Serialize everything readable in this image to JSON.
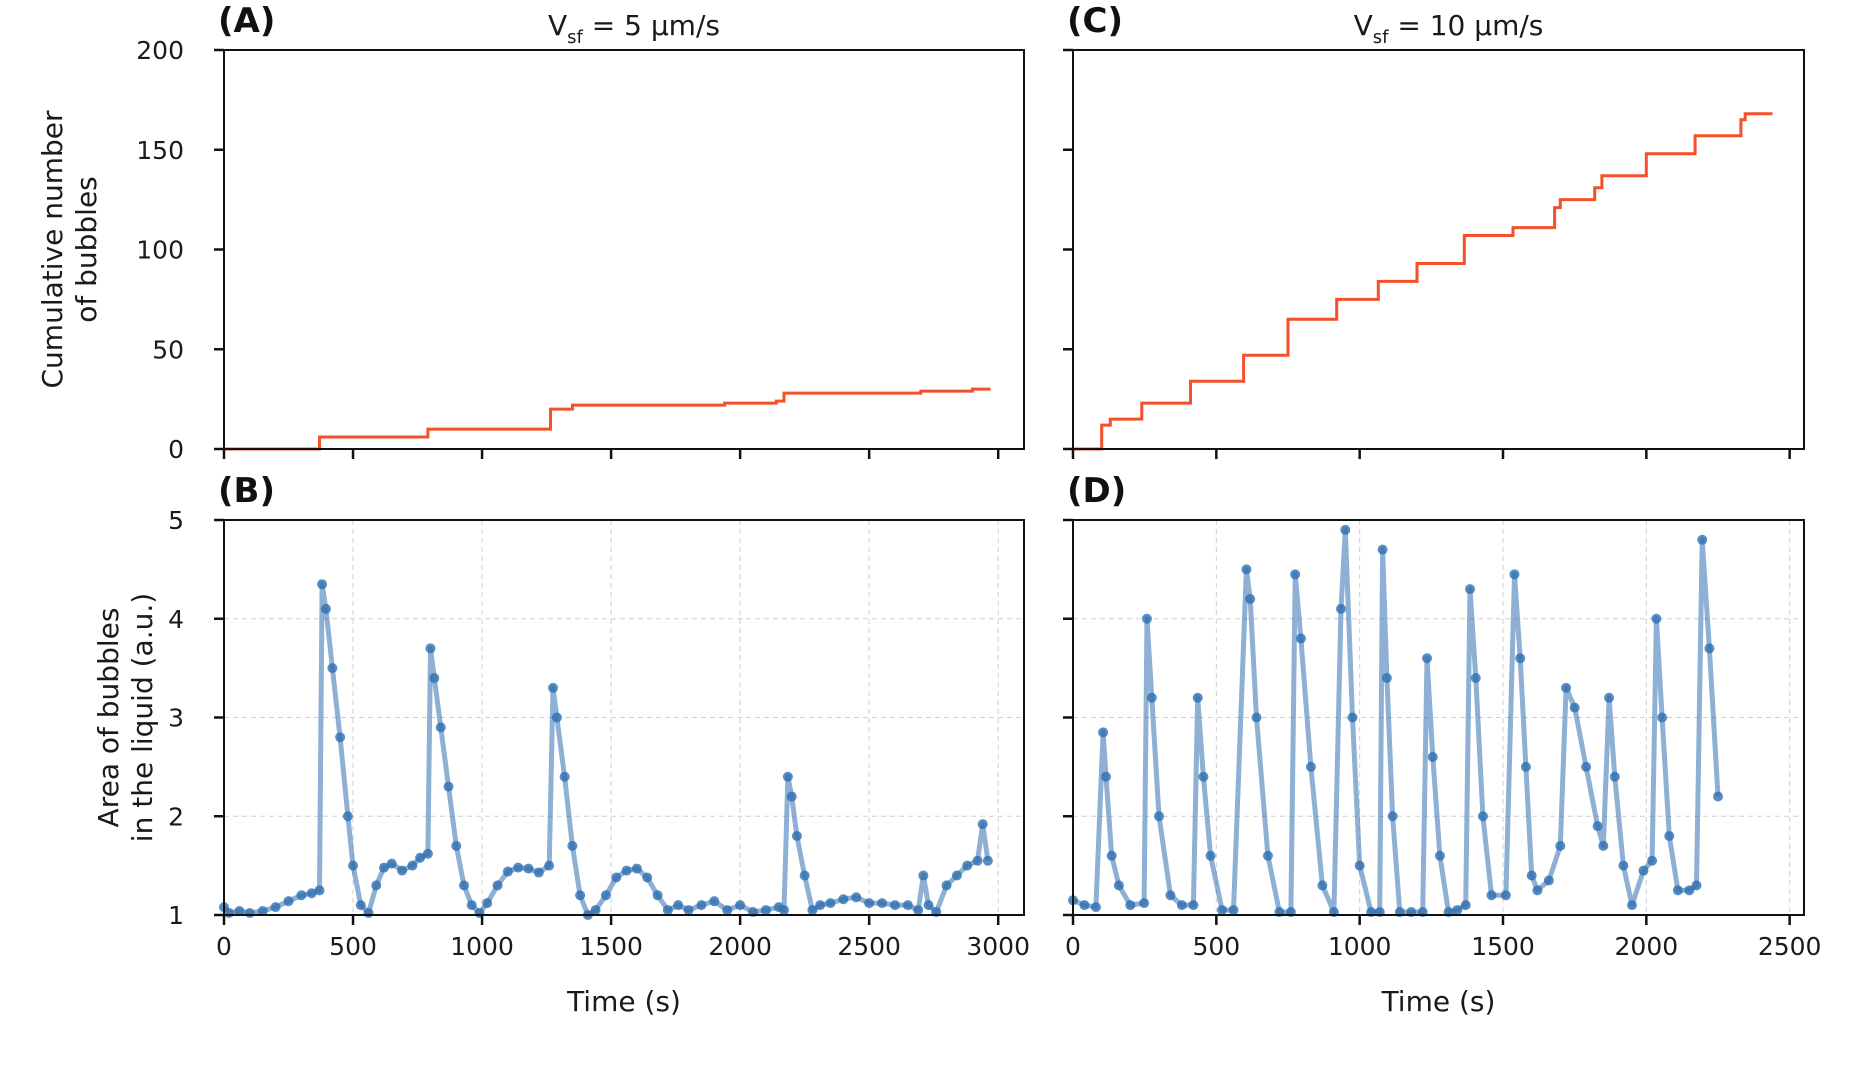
{
  "chart_data": [
    {
      "panel": "(A)",
      "type": "line",
      "title": "V_sf = 5 µm/s",
      "title_main": "V",
      "title_sub": "sf",
      "title_rest": " = 5 µm/s",
      "ylabel_lines": [
        "Cumulative number",
        "of bubbles"
      ],
      "xlabel": "",
      "xlim": [
        0,
        3100
      ],
      "ylim": [
        0,
        200
      ],
      "xticks": [
        0,
        500,
        1000,
        1500,
        2000,
        2500,
        3000
      ],
      "yticks": [
        0,
        50,
        100,
        150,
        200
      ],
      "show_xticklabels": false,
      "show_yticklabels": true,
      "grid": false,
      "color": "#f4502a",
      "step": true,
      "x": [
        0,
        370,
        790,
        1265,
        1350,
        1940,
        2140,
        2170,
        2700,
        2900,
        2970
      ],
      "y": [
        0,
        6,
        10,
        20,
        22,
        23,
        24,
        28,
        29,
        30,
        30
      ]
    },
    {
      "panel": "(C)",
      "type": "line",
      "title": "V_sf = 10 µm/s",
      "title_main": "V",
      "title_sub": "sf",
      "title_rest": " = 10 µm/s",
      "ylabel_lines": [],
      "xlabel": "",
      "xlim": [
        0,
        2550
      ],
      "ylim": [
        0,
        200
      ],
      "xticks": [
        0,
        500,
        1000,
        1500,
        2000,
        2500
      ],
      "yticks": [
        0,
        50,
        100,
        150,
        200
      ],
      "show_xticklabels": false,
      "show_yticklabels": false,
      "grid": false,
      "color": "#f4502a",
      "step": true,
      "x": [
        0,
        100,
        130,
        240,
        410,
        595,
        750,
        920,
        1065,
        1200,
        1365,
        1535,
        1680,
        1700,
        1820,
        1845,
        2000,
        2170,
        2330,
        2345,
        2440
      ],
      "y": [
        0,
        12,
        15,
        23,
        34,
        47,
        65,
        75,
        84,
        93,
        107,
        111,
        121,
        125,
        131,
        137,
        148,
        157,
        165,
        168,
        168
      ]
    },
    {
      "panel": "(B)",
      "type": "scatter",
      "title": "",
      "ylabel_lines": [
        "Area of bubbles",
        "in the liquid (a.u.)"
      ],
      "xlabel": "Time (s)",
      "xlim": [
        0,
        3100
      ],
      "ylim": [
        1,
        5
      ],
      "xticks": [
        0,
        500,
        1000,
        1500,
        2000,
        2500,
        3000
      ],
      "yticks": [
        1,
        2,
        3,
        4,
        5
      ],
      "show_xticklabels": true,
      "show_yticklabels": true,
      "grid": true,
      "color": "#2f6fb0",
      "x": [
        0,
        20,
        60,
        100,
        150,
        200,
        250,
        300,
        340,
        370,
        380,
        395,
        420,
        450,
        480,
        500,
        530,
        560,
        590,
        620,
        650,
        690,
        730,
        760,
        790,
        800,
        815,
        840,
        870,
        900,
        930,
        960,
        990,
        1020,
        1060,
        1100,
        1140,
        1180,
        1220,
        1260,
        1275,
        1290,
        1320,
        1350,
        1380,
        1410,
        1440,
        1480,
        1520,
        1560,
        1600,
        1640,
        1680,
        1720,
        1760,
        1800,
        1850,
        1900,
        1950,
        2000,
        2050,
        2100,
        2150,
        2170,
        2185,
        2200,
        2220,
        2250,
        2280,
        2310,
        2350,
        2400,
        2450,
        2500,
        2550,
        2600,
        2650,
        2690,
        2710,
        2730,
        2760,
        2800,
        2840,
        2880,
        2920,
        2940,
        2960
      ],
      "y": [
        1.08,
        1.02,
        1.04,
        1.02,
        1.04,
        1.08,
        1.14,
        1.2,
        1.22,
        1.25,
        4.35,
        4.1,
        3.5,
        2.8,
        2.0,
        1.5,
        1.1,
        1.02,
        1.3,
        1.48,
        1.52,
        1.45,
        1.5,
        1.58,
        1.62,
        3.7,
        3.4,
        2.9,
        2.3,
        1.7,
        1.3,
        1.1,
        1.02,
        1.12,
        1.3,
        1.44,
        1.48,
        1.47,
        1.43,
        1.5,
        3.3,
        3.0,
        2.4,
        1.7,
        1.2,
        1.0,
        1.05,
        1.2,
        1.38,
        1.45,
        1.47,
        1.38,
        1.2,
        1.05,
        1.1,
        1.05,
        1.1,
        1.14,
        1.05,
        1.1,
        1.03,
        1.05,
        1.08,
        1.05,
        2.4,
        2.2,
        1.8,
        1.4,
        1.05,
        1.1,
        1.12,
        1.16,
        1.18,
        1.12,
        1.12,
        1.1,
        1.1,
        1.05,
        1.4,
        1.1,
        1.03,
        1.3,
        1.4,
        1.5,
        1.55,
        1.92,
        1.55
      ]
    },
    {
      "panel": "(D)",
      "type": "scatter",
      "title": "",
      "ylabel_lines": [],
      "xlabel": "Time (s)",
      "xlim": [
        0,
        2550
      ],
      "ylim": [
        1,
        5
      ],
      "xticks": [
        0,
        500,
        1000,
        1500,
        2000,
        2500
      ],
      "yticks": [
        1,
        2,
        3,
        4,
        5
      ],
      "show_xticklabels": true,
      "show_yticklabels": false,
      "grid": true,
      "color": "#2f6fb0",
      "x": [
        0,
        40,
        80,
        105,
        115,
        135,
        160,
        200,
        248,
        258,
        275,
        300,
        340,
        380,
        420,
        435,
        455,
        480,
        520,
        560,
        605,
        618,
        640,
        680,
        720,
        760,
        775,
        795,
        830,
        870,
        910,
        935,
        950,
        975,
        1000,
        1040,
        1070,
        1080,
        1095,
        1115,
        1140,
        1180,
        1220,
        1235,
        1255,
        1280,
        1310,
        1340,
        1370,
        1385,
        1405,
        1430,
        1460,
        1510,
        1540,
        1560,
        1580,
        1600,
        1620,
        1660,
        1700,
        1720,
        1750,
        1790,
        1830,
        1850,
        1870,
        1890,
        1920,
        1950,
        1990,
        2020,
        2035,
        2055,
        2080,
        2110,
        2150,
        2175,
        2195,
        2220,
        2250
      ],
      "y": [
        1.15,
        1.1,
        1.08,
        2.85,
        2.4,
        1.6,
        1.3,
        1.1,
        1.12,
        4.0,
        3.2,
        2.0,
        1.2,
        1.1,
        1.1,
        3.2,
        2.4,
        1.6,
        1.05,
        1.05,
        4.5,
        4.2,
        3.0,
        1.6,
        1.03,
        1.03,
        4.45,
        3.8,
        2.5,
        1.3,
        1.03,
        4.1,
        4.9,
        3.0,
        1.5,
        1.03,
        1.03,
        4.7,
        3.4,
        2.0,
        1.03,
        1.03,
        1.03,
        3.6,
        2.6,
        1.6,
        1.03,
        1.05,
        1.1,
        4.3,
        3.4,
        2.0,
        1.2,
        1.2,
        4.45,
        3.6,
        2.5,
        1.4,
        1.25,
        1.35,
        1.7,
        3.3,
        3.1,
        2.5,
        1.9,
        1.7,
        3.2,
        2.4,
        1.5,
        1.1,
        1.45,
        1.55,
        4.0,
        3.0,
        1.8,
        1.25,
        1.25,
        1.3,
        4.8,
        3.7,
        2.2
      ]
    }
  ]
}
